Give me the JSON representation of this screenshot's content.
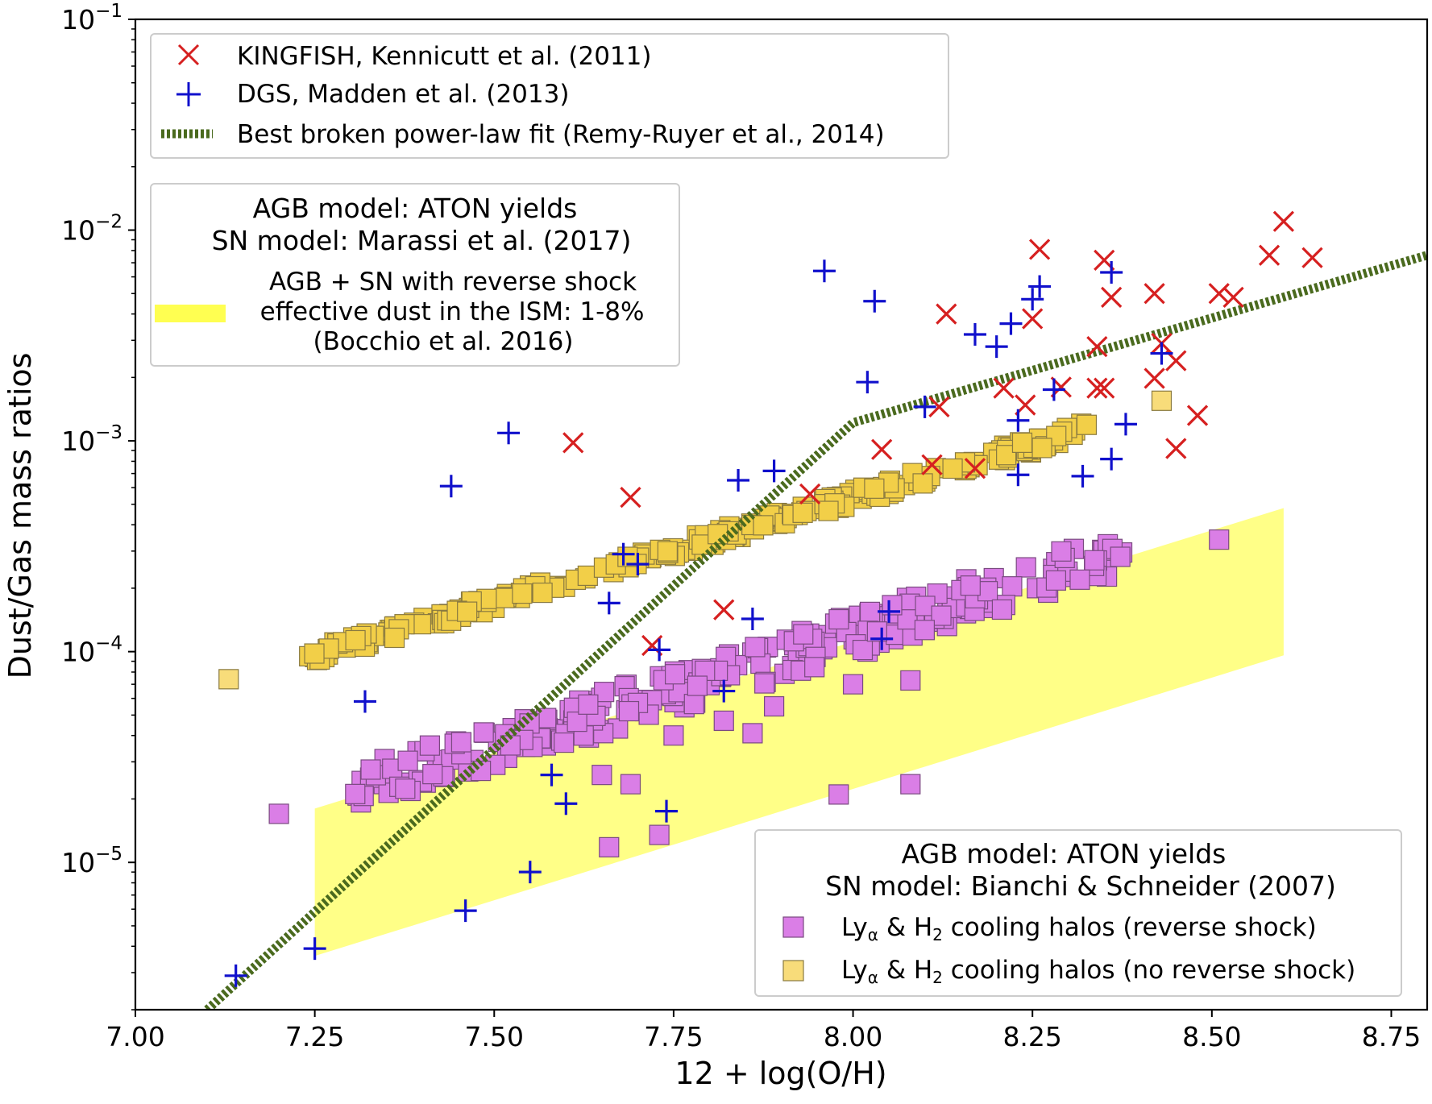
{
  "chart_data": {
    "type": "scatter",
    "xlabel": "12 + log(O/H)",
    "ylabel": "Dust/Gas mass ratios",
    "xlim": [
      7.0,
      8.8
    ],
    "ylim": [
      2e-06,
      0.1
    ],
    "yscale": "log",
    "x_ticks": [
      {
        "value": 7.0,
        "label": "7.00"
      },
      {
        "value": 7.25,
        "label": "7.25"
      },
      {
        "value": 7.5,
        "label": "7.50"
      },
      {
        "value": 7.75,
        "label": "7.75"
      },
      {
        "value": 8.0,
        "label": "8.00"
      },
      {
        "value": 8.25,
        "label": "8.25"
      },
      {
        "value": 8.5,
        "label": "8.50"
      },
      {
        "value": 8.75,
        "label": "8.75"
      }
    ],
    "y_ticks": [
      {
        "value": 1e-05,
        "base": "10",
        "exp": "−5"
      },
      {
        "value": 0.0001,
        "base": "10",
        "exp": "−4"
      },
      {
        "value": 0.001,
        "base": "10",
        "exp": "−3"
      },
      {
        "value": 0.01,
        "base": "10",
        "exp": "−2"
      },
      {
        "value": 0.1,
        "base": "10",
        "exp": "−1"
      }
    ],
    "series": [
      {
        "name": "KINGFISH, Kennicutt et al. (2011)",
        "marker": "x",
        "color": "#d62020",
        "points": [
          [
            7.61,
            0.00098
          ],
          [
            7.69,
            0.00054
          ],
          [
            7.72,
            0.000107
          ],
          [
            7.82,
            0.000158
          ],
          [
            7.94,
            0.00056
          ],
          [
            8.04,
            0.00091
          ],
          [
            8.11,
            0.00077
          ],
          [
            8.12,
            0.00145
          ],
          [
            8.13,
            0.004
          ],
          [
            8.17,
            0.00074
          ],
          [
            8.21,
            0.00178
          ],
          [
            8.24,
            0.00148
          ],
          [
            8.25,
            0.0038
          ],
          [
            8.26,
            0.0081
          ],
          [
            8.29,
            0.0018
          ],
          [
            8.34,
            0.0028
          ],
          [
            8.34,
            0.00178
          ],
          [
            8.35,
            0.00178
          ],
          [
            8.35,
            0.0072
          ],
          [
            8.36,
            0.0048
          ],
          [
            8.42,
            0.005
          ],
          [
            8.42,
            0.00198
          ],
          [
            8.43,
            0.0029
          ],
          [
            8.45,
            0.0024
          ],
          [
            8.45,
            0.00092
          ],
          [
            8.48,
            0.00132
          ],
          [
            8.51,
            0.005
          ],
          [
            8.53,
            0.0048
          ],
          [
            8.58,
            0.0076
          ],
          [
            8.6,
            0.011
          ],
          [
            8.64,
            0.0074
          ]
        ]
      },
      {
        "name": "DGS, Madden et al. (2013)",
        "marker": "+",
        "color": "#1010cc",
        "points": [
          [
            7.14,
            2.9e-06
          ],
          [
            7.25,
            3.9e-06
          ],
          [
            7.32,
            5.8e-05
          ],
          [
            7.44,
            0.00061
          ],
          [
            7.46,
            5.9e-06
          ],
          [
            7.52,
            0.00109
          ],
          [
            7.55,
            9e-06
          ],
          [
            7.58,
            2.6e-05
          ],
          [
            7.6,
            1.9e-05
          ],
          [
            7.66,
            0.00017
          ],
          [
            7.68,
            0.00029
          ],
          [
            7.7,
            0.00026
          ],
          [
            7.73,
            0.000102
          ],
          [
            7.74,
            1.75e-05
          ],
          [
            7.82,
            6.5e-05
          ],
          [
            7.84,
            0.00065
          ],
          [
            7.86,
            0.000143
          ],
          [
            7.89,
            0.00072
          ],
          [
            7.96,
            0.0064
          ],
          [
            8.02,
            0.0019
          ],
          [
            8.03,
            0.0046
          ],
          [
            8.04,
            0.000115
          ],
          [
            8.05,
            0.000155
          ],
          [
            8.1,
            0.00145
          ],
          [
            8.17,
            0.0032
          ],
          [
            8.2,
            0.0028
          ],
          [
            8.22,
            0.0036
          ],
          [
            8.23,
            0.00125
          ],
          [
            8.23,
            0.00069
          ],
          [
            8.25,
            0.0047
          ],
          [
            8.26,
            0.0054
          ],
          [
            8.28,
            0.00175
          ],
          [
            8.32,
            0.00068
          ],
          [
            8.36,
            0.0063
          ],
          [
            8.36,
            0.00082
          ],
          [
            8.38,
            0.0012
          ],
          [
            8.43,
            0.0026
          ]
        ]
      },
      {
        "name": "Best broken power-law fit (Remy-Ruyer et al., 2014)",
        "marker": "dotted-line",
        "color": "#4a6a1e",
        "points": [
          [
            7.1,
            2e-06
          ],
          [
            8.0,
            0.00122
          ],
          [
            8.8,
            0.0076
          ]
        ]
      },
      {
        "name": "Lyα & H2 cooling halos (reverse shock)",
        "marker": "square",
        "color": "#da7ee6",
        "trend": {
          "x_start": 7.3,
          "x_end": 8.38,
          "y_start": 2.2e-05,
          "y_end": 0.0003
        },
        "points": [
          [
            7.2,
            1.7e-05
          ],
          [
            7.66,
            1.18e-05
          ],
          [
            7.69,
            2.35e-05
          ],
          [
            7.73,
            1.35e-05
          ],
          [
            7.75,
            4e-05
          ],
          [
            7.86,
            4.1e-05
          ],
          [
            7.65,
            2.6e-05
          ],
          [
            7.98,
            2.1e-05
          ],
          [
            8.08,
            2.35e-05
          ],
          [
            8.08,
            7.3e-05
          ],
          [
            8.51,
            0.00034
          ],
          [
            7.82,
            4.7e-05
          ],
          [
            7.89,
            5.5e-05
          ],
          [
            8.0,
            7e-05
          ]
        ]
      },
      {
        "name": "Lyα & H2 cooling halos (no reverse shock)",
        "marker": "square",
        "color": "#f8dc7a",
        "trend": {
          "x_start": 7.24,
          "x_end": 8.33,
          "y_start": 9.5e-05,
          "y_end": 0.00115
        },
        "points": [
          [
            7.13,
            7.4e-05
          ],
          [
            8.43,
            0.00155
          ]
        ]
      }
    ],
    "band": {
      "name": "AGB + SN with reverse shock effective dust in the ISM: 1-8% (Bocchio et al. 2016)",
      "color": "#ffff7a",
      "x": [
        7.25,
        8.6
      ],
      "upper": [
        1.8e-05,
        0.00048
      ],
      "lower": [
        3.6e-06,
        9.6e-05
      ]
    },
    "legend_top": {
      "placement": "upper-left",
      "entries": [
        {
          "label": "KINGFISH, Kennicutt et al. (2011)",
          "marker": "x"
        },
        {
          "label": "DGS, Madden et al. (2013)",
          "marker": "+"
        },
        {
          "label": "Best broken power-law fit (Remy-Ruyer et al., 2014)",
          "marker": "dotted-line"
        }
      ]
    },
    "legend_mid": {
      "placement": "upper-left",
      "title_line1": "AGB model: ATON yields",
      "title_line2": "SN model: Marassi et al. (2017)",
      "label_line1": "AGB + SN with reverse shock",
      "label_line2": "effective dust in the ISM: 1-8%",
      "label_line3": "(Bocchio et al. 2016)"
    },
    "legend_bottom": {
      "placement": "lower-right",
      "title_line1": "AGB model: ATON yields",
      "title_line2": "SN model: Bianchi & Schneider (2007)",
      "entry1": {
        "prefix": "Ly",
        "sub1": "α",
        "mid": " & H",
        "sub2": "2",
        "suffix": " cooling halos (reverse shock)"
      },
      "entry2": {
        "prefix": "Ly",
        "sub1": "α",
        "mid": " & H",
        "sub2": "2",
        "suffix": " cooling halos (no reverse shock)"
      }
    }
  }
}
